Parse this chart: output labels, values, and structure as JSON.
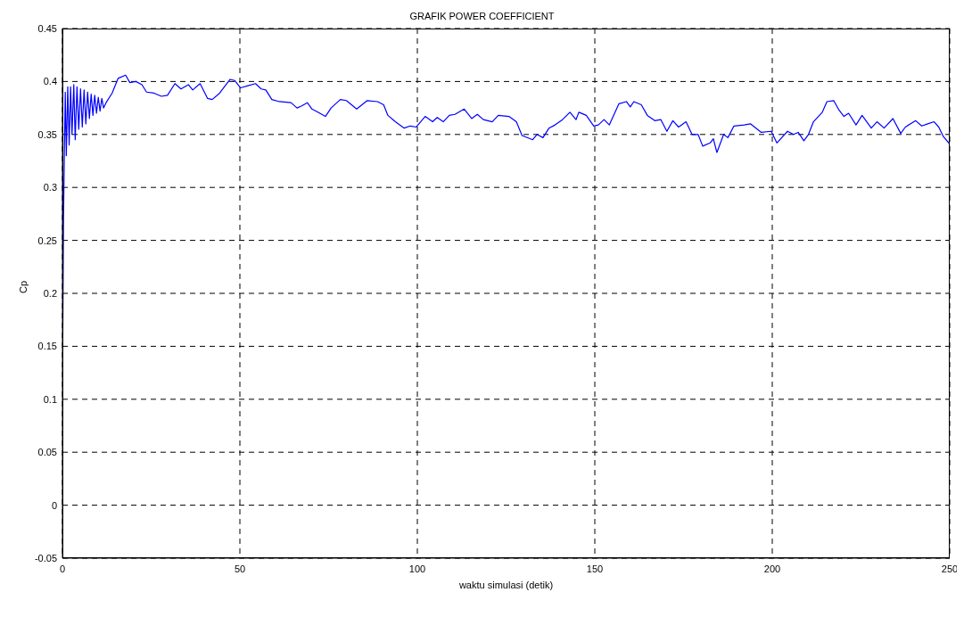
{
  "chart_data": {
    "type": "line",
    "title": "GRAFIK POWER  COEFFICIENT",
    "xlabel": "waktu simulasi (detik)",
    "ylabel": "Cp",
    "xlim": [
      0,
      250
    ],
    "xticks": [
      0,
      50,
      100,
      150,
      200,
      250
    ],
    "ylim": [
      -0.05,
      0.45
    ],
    "yticks": [
      -0.05,
      0,
      0.05,
      0.1,
      0.15,
      0.2,
      0.25,
      0.3,
      0.35,
      0.4,
      0.45
    ],
    "grid": true,
    "marker": "none",
    "line_style": "solid",
    "series": [
      {
        "color": "#0000ff",
        "x": [
          0,
          0.3,
          0.5,
          0.8,
          1.1,
          1.5,
          1.9,
          2.3,
          2.7,
          3.2,
          3.6,
          4.1,
          4.6,
          5.1,
          5.6,
          6.1,
          6.6,
          7.1,
          7.6,
          8.1,
          8.6,
          9.1,
          9.6,
          10.1,
          10.6,
          11.1,
          11.6,
          12.3,
          14,
          15.7,
          17.8,
          19,
          20.7,
          22.4,
          23.7,
          25.8,
          27.9,
          29.6,
          31.7,
          33.4,
          35.5,
          36.7,
          38.8,
          40.9,
          42.2,
          44.3,
          47.2,
          48.5,
          50.2,
          52.3,
          54.4,
          56,
          57.3,
          59,
          61.1,
          64.4,
          66.1,
          67.4,
          69,
          70.3,
          71.5,
          74.1,
          75.7,
          78.3,
          80,
          82.9,
          85.9,
          88.8,
          90.5,
          91.7,
          93.8,
          96.3,
          98,
          99.7,
          102.2,
          104.3,
          105.6,
          107.3,
          109,
          110.6,
          113.2,
          115.3,
          116.9,
          118.6,
          121.1,
          122.8,
          125.8,
          127.9,
          129.5,
          132.5,
          133.7,
          135.4,
          137.1,
          138.8,
          140.9,
          143,
          144.7,
          145.5,
          147.6,
          149.7,
          151,
          152.6,
          154.1,
          156.8,
          158.9,
          160,
          161,
          163.1,
          164.8,
          166.9,
          168.6,
          170.3,
          172,
          173.6,
          175.7,
          177.4,
          179.1,
          180.4,
          182.5,
          183.4,
          184.4,
          186.3,
          187.5,
          189.2,
          192.1,
          193.9,
          196.9,
          199.7,
          201.3,
          204.3,
          206,
          207.3,
          208.9,
          210.2,
          211.6,
          214.1,
          215.4,
          217.3,
          218.8,
          220.2,
          221.5,
          223.6,
          225.3,
          227.9,
          229.5,
          231.5,
          234,
          236.2,
          237.5,
          240.4,
          242.1,
          243.8,
          245.6,
          246.9,
          248.2,
          250
        ],
        "values": [
          0.1,
          0.27,
          0.32,
          0.39,
          0.33,
          0.395,
          0.34,
          0.395,
          0.35,
          0.397,
          0.345,
          0.395,
          0.355,
          0.393,
          0.357,
          0.392,
          0.36,
          0.39,
          0.365,
          0.388,
          0.368,
          0.387,
          0.37,
          0.385,
          0.372,
          0.384,
          0.375,
          0.38,
          0.389,
          0.403,
          0.406,
          0.399,
          0.4,
          0.397,
          0.39,
          0.389,
          0.386,
          0.387,
          0.398,
          0.393,
          0.397,
          0.392,
          0.398,
          0.384,
          0.383,
          0.389,
          0.402,
          0.401,
          0.394,
          0.396,
          0.398,
          0.393,
          0.392,
          0.383,
          0.381,
          0.38,
          0.375,
          0.377,
          0.38,
          0.374,
          0.372,
          0.367,
          0.375,
          0.383,
          0.382,
          0.374,
          0.382,
          0.381,
          0.378,
          0.368,
          0.362,
          0.356,
          0.358,
          0.357,
          0.367,
          0.362,
          0.366,
          0.362,
          0.368,
          0.369,
          0.374,
          0.365,
          0.369,
          0.364,
          0.362,
          0.368,
          0.367,
          0.362,
          0.349,
          0.345,
          0.35,
          0.347,
          0.356,
          0.359,
          0.364,
          0.371,
          0.364,
          0.371,
          0.368,
          0.358,
          0.359,
          0.364,
          0.359,
          0.379,
          0.381,
          0.376,
          0.381,
          0.378,
          0.368,
          0.363,
          0.364,
          0.353,
          0.363,
          0.357,
          0.362,
          0.35,
          0.35,
          0.339,
          0.342,
          0.346,
          0.333,
          0.35,
          0.347,
          0.358,
          0.359,
          0.36,
          0.352,
          0.353,
          0.342,
          0.353,
          0.35,
          0.352,
          0.344,
          0.35,
          0.362,
          0.371,
          0.381,
          0.382,
          0.373,
          0.367,
          0.37,
          0.359,
          0.368,
          0.356,
          0.362,
          0.356,
          0.365,
          0.351,
          0.357,
          0.363,
          0.358,
          0.36,
          0.362,
          0.357,
          0.348,
          0.341
        ]
      }
    ]
  }
}
